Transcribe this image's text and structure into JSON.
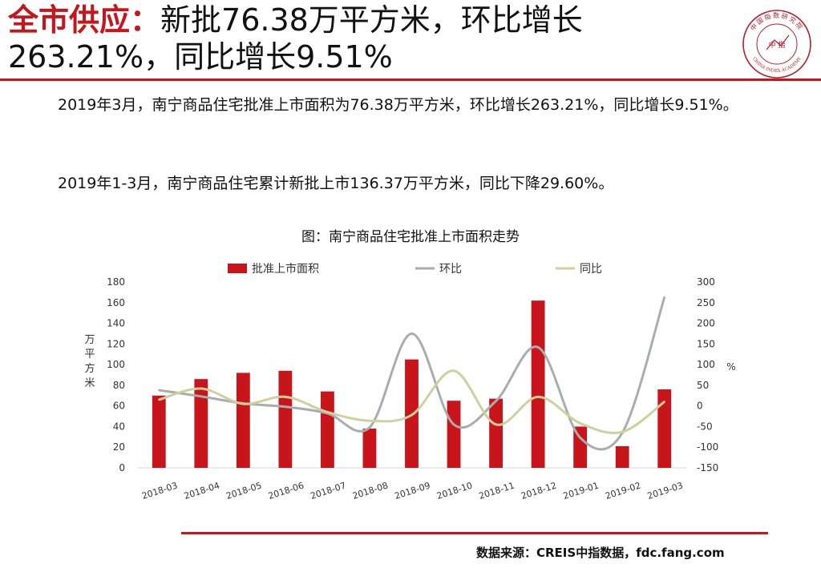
{
  "header": {
    "title_highlight": "全市供应：",
    "title_rest": "新批76.38万平方米，环比增长263.21%，同比增长9.51%"
  },
  "logo": {
    "top_text": "中国指数研究院",
    "center_text": "中 指",
    "bottom_text": "CHINA INDEX ACADEMY"
  },
  "paragraphs": {
    "p1": "2019年3月，南宁商品住宅批准上市面积为76.38万平方米，环比增长263.21%，同比增长9.51%。",
    "p2": "2019年1-3月，南宁商品住宅累计新批上市136.37万平方米，同比下降29.60%。"
  },
  "chart_data": {
    "type": "bar",
    "title": "图：南宁商品住宅批准上市面积走势",
    "categories": [
      "2018-03",
      "2018-04",
      "2018-05",
      "2018-06",
      "2018-07",
      "2018-08",
      "2018-09",
      "2018-10",
      "2018-11",
      "2018-12",
      "2019-01",
      "2019-02",
      "2019-03"
    ],
    "series": [
      {
        "name": "批准上市面积",
        "kind": "bar",
        "axis": "left",
        "color": "#c8141b",
        "values": [
          70,
          86,
          92,
          94,
          74,
          38,
          105,
          65,
          67,
          162,
          40,
          21,
          76
        ]
      },
      {
        "name": "环比",
        "kind": "line",
        "axis": "right",
        "color": "#a7aead",
        "values": [
          38,
          23,
          6,
          -2,
          -18,
          -52,
          175,
          -45,
          12,
          142,
          -77,
          -65,
          263
        ]
      },
      {
        "name": "同比",
        "kind": "line",
        "axis": "right",
        "color": "#cfd09d",
        "values": [
          15,
          42,
          5,
          22,
          -15,
          -36,
          -22,
          85,
          -45,
          22,
          -42,
          -63,
          10
        ]
      }
    ],
    "ylabel": "万平方米",
    "y2label": "%",
    "ylim": [
      0,
      180
    ],
    "y2lim": [
      -150,
      300
    ],
    "yticks": [
      0,
      20,
      40,
      60,
      80,
      100,
      120,
      140,
      160,
      180
    ],
    "y2ticks": [
      -150,
      -100,
      -50,
      0,
      50,
      100,
      150,
      200,
      250,
      300
    ],
    "grid": false,
    "legend_position": "top"
  },
  "source": "数据来源：CREIS中指数据，fdc.fang.com"
}
